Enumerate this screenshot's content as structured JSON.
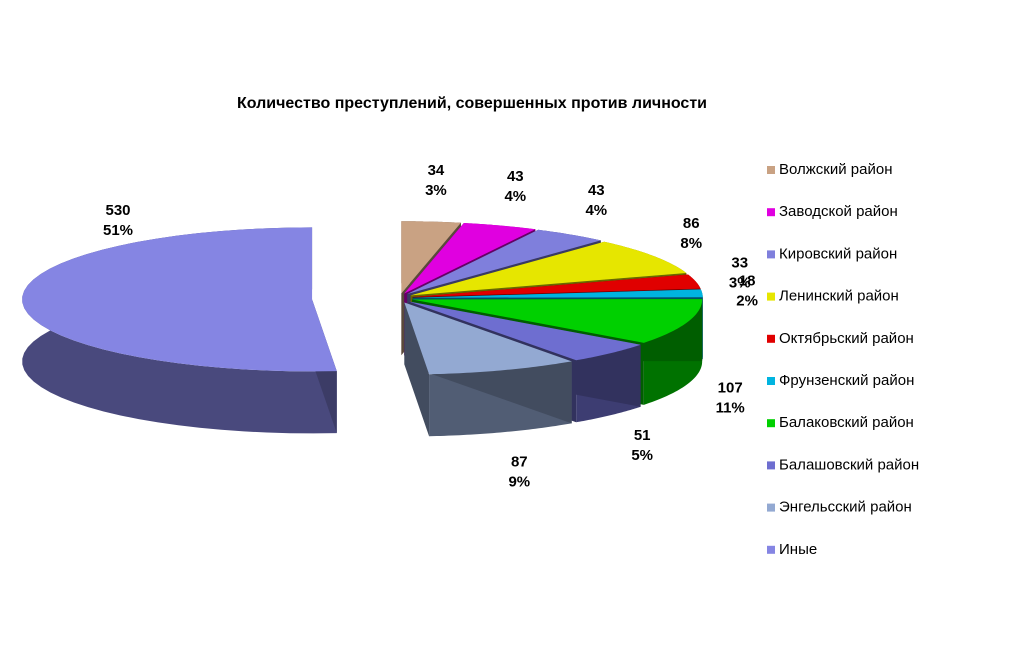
{
  "chart_data": {
    "type": "pie",
    "title": "Количество преступлений, совершенных против личности",
    "categories": [
      "Волжский район",
      "Заводской район",
      "Кировский район",
      "Ленинский район",
      "Октябрьский район",
      "Фрунзенский район",
      "Балаковский район",
      "Балашовский район",
      "Энгельсский район",
      "Иные"
    ],
    "values": [
      34,
      43,
      43,
      86,
      33,
      18,
      107,
      51,
      87,
      530
    ],
    "percent_labels": [
      "3%",
      "4%",
      "4%",
      "8%",
      "3%",
      "2%",
      "11%",
      "5%",
      "9%",
      "51%"
    ],
    "colors": [
      "#c9a283",
      "#e000e0",
      "#7f7fdc",
      "#e6e600",
      "#e00000",
      "#00b4e0",
      "#00d000",
      "#6e6ed0",
      "#93a9d2",
      "#8585e3"
    ],
    "legend": "right"
  }
}
